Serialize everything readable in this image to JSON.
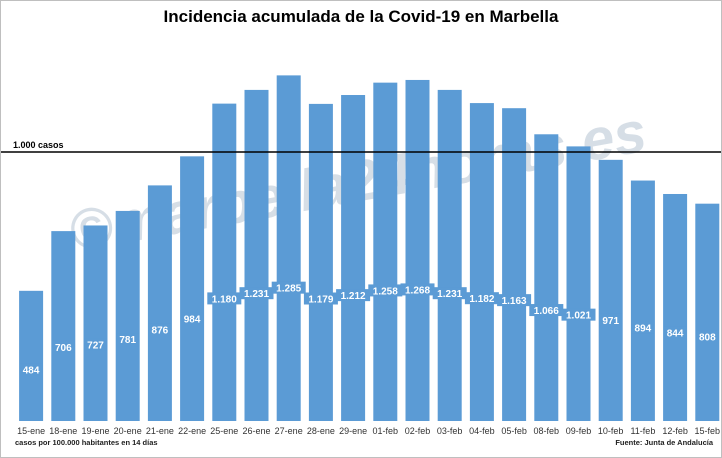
{
  "chart_data": {
    "type": "bar",
    "title": "Incidencia acumulada de la Covid-19 en Marbella",
    "categories": [
      "15-ene",
      "18-ene",
      "19-ene",
      "20-ene",
      "21-ene",
      "22-ene",
      "25-ene",
      "26-ene",
      "27-ene",
      "28-ene",
      "29-ene",
      "01-feb",
      "02-feb",
      "03-feb",
      "04-feb",
      "05-feb",
      "08-feb",
      "09-feb",
      "10-feb",
      "11-feb",
      "12-feb",
      "15-feb"
    ],
    "values": [
      484,
      706,
      727,
      781,
      876,
      984,
      1180,
      1231,
      1285,
      1179,
      1212,
      1258,
      1268,
      1231,
      1182,
      1163,
      1066,
      1021,
      971,
      894,
      844,
      808
    ],
    "data_labels": [
      "484",
      "706",
      "727",
      "781",
      "876",
      "984",
      "1.180",
      "1.231",
      "1.285",
      "1.179",
      "1.212",
      "1.258",
      "1.268",
      "1.231",
      "1.182",
      "1.163",
      "1.066",
      "1.021",
      "971",
      "894",
      "844",
      "808"
    ],
    "reference_line": {
      "value": 1000,
      "label": "1.000 casos"
    },
    "ylim": [
      0,
      1450
    ],
    "bar_color": "#5b9bd5",
    "grid": false,
    "footnote": "casos por 100.000 habitantes en 14 días",
    "source": "Fuente: Junta de Andalucía",
    "watermark": "©marbella24horas.es"
  }
}
